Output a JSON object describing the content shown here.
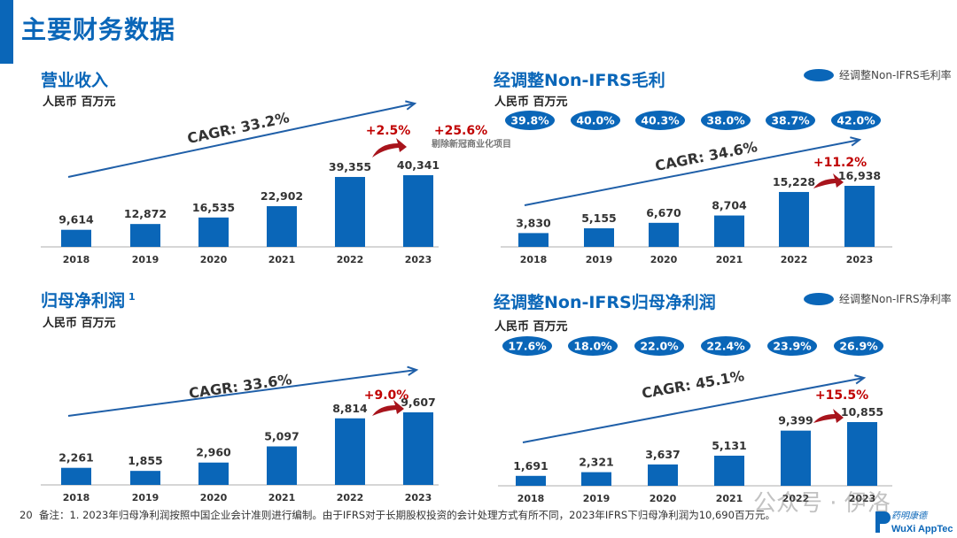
{
  "page": {
    "title": "主要财务数据",
    "page_number": "20",
    "footnote": "备注：1. 2023年归母净利润按照中国企业会计准则进行编制。由于IFRS对于长期股权投资的会计处理方式有所不同，2023年IFRS下归母净利润为10,690百万元。",
    "watermark": "公众号 · 伊洛",
    "logo_text": "WuXi AppTec",
    "logo_cn": "药明康德",
    "colors": {
      "bar": "#0a66b8",
      "growth": "#c00000",
      "arrow": "#1f5fa8"
    }
  },
  "panels": [
    {
      "title": "营业收入",
      "unit": "人民币 百万元",
      "superscript": ""
    },
    {
      "title": "经调整Non-IFRS毛利",
      "unit": "人民币 百万元",
      "legend": "经调整Non-IFRS毛利率"
    },
    {
      "title": "归母净利润",
      "unit": "人民币 百万元",
      "superscript": "1"
    },
    {
      "title": "经调整Non-IFRS归母净利润",
      "unit": "人民币 百万元",
      "legend": "经调整Non-IFRS净利率"
    }
  ],
  "chart_data": [
    {
      "type": "bar",
      "title": "营业收入",
      "unit": "人民币 百万元",
      "categories": [
        "2018",
        "2019",
        "2020",
        "2021",
        "2022",
        "2023"
      ],
      "values": [
        9614,
        12872,
        16535,
        22902,
        39355,
        40341
      ],
      "value_labels": [
        "9,614",
        "12,872",
        "16,535",
        "22,902",
        "39,355",
        "40,341"
      ],
      "cagr_label": "CAGR: 33.2%",
      "growth_labels": [
        "+2.5%",
        "+25.6%"
      ],
      "growth_note": "剔除新冠商业化项目"
    },
    {
      "type": "bar",
      "title": "经调整Non-IFRS毛利",
      "unit": "人民币 百万元",
      "categories": [
        "2018",
        "2019",
        "2020",
        "2021",
        "2022",
        "2023"
      ],
      "values": [
        3830,
        5155,
        6670,
        8704,
        15228,
        16938
      ],
      "value_labels": [
        "3,830",
        "5,155",
        "6,670",
        "8,704",
        "15,228",
        "16,938"
      ],
      "cagr_label": "CAGR: 34.6%",
      "growth_labels": [
        "+11.2%"
      ],
      "margin_series": {
        "name": "经调整Non-IFRS毛利率",
        "values": [
          "39.8%",
          "40.0%",
          "40.3%",
          "38.0%",
          "38.7%",
          "42.0%"
        ]
      }
    },
    {
      "type": "bar",
      "title": "归母净利润",
      "unit": "人民币 百万元",
      "categories": [
        "2018",
        "2019",
        "2020",
        "2021",
        "2022",
        "2023"
      ],
      "values": [
        2261,
        1855,
        2960,
        5097,
        8814,
        9607
      ],
      "value_labels": [
        "2,261",
        "1,855",
        "2,960",
        "5,097",
        "8,814",
        "9,607"
      ],
      "cagr_label": "CAGR: 33.6%",
      "growth_labels": [
        "+9.0%"
      ]
    },
    {
      "type": "bar",
      "title": "经调整Non-IFRS归母净利润",
      "unit": "人民币 百万元",
      "categories": [
        "2018",
        "2019",
        "2020",
        "2021",
        "2022",
        "2023"
      ],
      "values": [
        1691,
        2321,
        3637,
        5131,
        9399,
        10855
      ],
      "value_labels": [
        "1,691",
        "2,321",
        "3,637",
        "5,131",
        "9,399",
        "10,855"
      ],
      "cagr_label": "CAGR: 45.1%",
      "growth_labels": [
        "+15.5%"
      ],
      "margin_series": {
        "name": "经调整Non-IFRS净利率",
        "values": [
          "17.6%",
          "18.0%",
          "22.0%",
          "22.4%",
          "23.9%",
          "26.9%"
        ]
      }
    }
  ]
}
